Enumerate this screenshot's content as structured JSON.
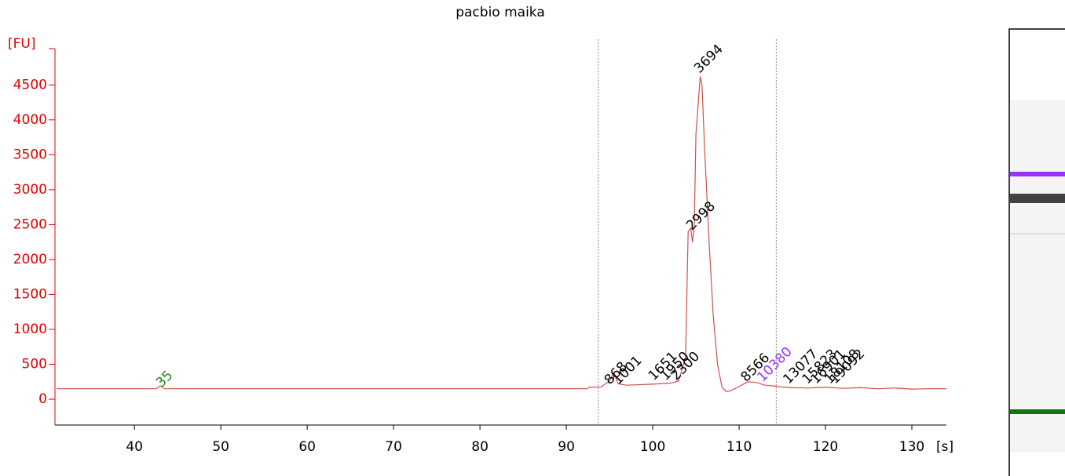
{
  "chart_data": {
    "type": "line",
    "title": "pacbio maika",
    "y_label": "[FU]",
    "x_label": "[s]",
    "xlim": [
      30.8,
      134
    ],
    "ylim": [
      -370,
      5020
    ],
    "xticks": [
      40,
      50,
      60,
      70,
      80,
      90,
      100,
      110,
      120,
      130
    ],
    "yticks": [
      0,
      500,
      1000,
      1500,
      2000,
      2500,
      3000,
      3500,
      4000,
      4500
    ],
    "series": [
      {
        "color": "#d0504c",
        "x": [
          31,
          40,
          42.5,
          43,
          43.5,
          50,
          60,
          70,
          80,
          90,
          92.4,
          92.6,
          94,
          95,
          95.5,
          96,
          97,
          100,
          102,
          103,
          103.8,
          104.1,
          104.4,
          104.6,
          104.8,
          105.0,
          105.3,
          105.5,
          105.7,
          106,
          106.5,
          107,
          107.5,
          108,
          108.5,
          109,
          110,
          111,
          112,
          113,
          114,
          115,
          116,
          118,
          120,
          122,
          124,
          126,
          128,
          130,
          132,
          134
        ],
        "values": [
          150,
          150,
          150,
          190,
          150,
          150,
          150,
          150,
          150,
          150,
          150,
          170,
          175,
          260,
          380,
          220,
          200,
          215,
          230,
          260,
          600,
          2400,
          2450,
          2250,
          2450,
          3800,
          4300,
          4620,
          4500,
          3600,
          2300,
          1200,
          500,
          180,
          110,
          120,
          180,
          250,
          240,
          200,
          190,
          175,
          165,
          160,
          170,
          155,
          165,
          150,
          160,
          145,
          150,
          150
        ]
      }
    ],
    "markers": [
      93.7,
      114.3
    ],
    "annotations": [
      {
        "label": "35",
        "x": 42.8,
        "y": 200,
        "color": "#1a8a1a"
      },
      {
        "label": "868",
        "x": 94.7,
        "y": 240,
        "color": "#000000"
      },
      {
        "label": "1001",
        "x": 95.7,
        "y": 240,
        "color": "#000000"
      },
      {
        "label": "1651",
        "x": 99.8,
        "y": 300,
        "color": "#000000"
      },
      {
        "label": "1950",
        "x": 101.2,
        "y": 300,
        "color": "#000000"
      },
      {
        "label": "2300",
        "x": 102.4,
        "y": 300,
        "color": "#000000"
      },
      {
        "label": "2998",
        "x": 104.2,
        "y": 2450,
        "color": "#000000"
      },
      {
        "label": "3694",
        "x": 105.1,
        "y": 4700,
        "color": "#000000"
      },
      {
        "label": "8566",
        "x": 110.5,
        "y": 280,
        "color": "#000000"
      },
      {
        "label": "10380",
        "x": 112.4,
        "y": 280,
        "color": "#9b30ff"
      },
      {
        "label": "13077",
        "x": 115.4,
        "y": 250,
        "color": "#000000"
      },
      {
        "label": "15823",
        "x": 117.6,
        "y": 250,
        "color": "#000000"
      },
      {
        "label": "16901",
        "x": 118.6,
        "y": 250,
        "color": "#000000"
      },
      {
        "label": "18108",
        "x": 120.2,
        "y": 250,
        "color": "#000000"
      },
      {
        "label": "19092",
        "x": 120.8,
        "y": 250,
        "color": "#000000"
      }
    ]
  }
}
